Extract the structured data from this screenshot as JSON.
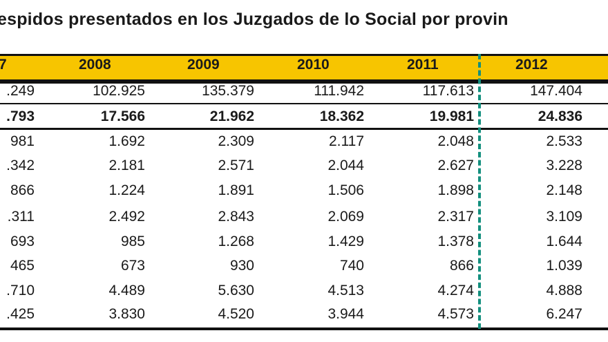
{
  "title": "espidos presentados en los Juzgados de lo Social por provin",
  "header": [
    "7",
    "2008",
    "2009",
    "2010",
    "2011",
    "2012"
  ],
  "rows": [
    {
      "bold": false,
      "values": [
        ".249",
        "102.925",
        "135.379",
        "111.942",
        "117.613",
        "147.404"
      ]
    },
    {
      "bold": true,
      "values": [
        ".793",
        "17.566",
        "21.962",
        "18.362",
        "19.981",
        "24.836"
      ]
    },
    {
      "bold": false,
      "values": [
        "981",
        "1.692",
        "2.309",
        "2.117",
        "2.048",
        "2.533"
      ]
    },
    {
      "bold": false,
      "values": [
        ".342",
        "2.181",
        "2.571",
        "2.044",
        "2.627",
        "3.228"
      ]
    },
    {
      "bold": false,
      "values": [
        "866",
        "1.224",
        "1.891",
        "1.506",
        "1.898",
        "2.148"
      ]
    },
    {
      "bold": false,
      "values": [
        ".311",
        "2.492",
        "2.843",
        "2.069",
        "2.317",
        "3.109"
      ]
    },
    {
      "bold": false,
      "values": [
        "693",
        "985",
        "1.268",
        "1.429",
        "1.378",
        "1.644"
      ]
    },
    {
      "bold": false,
      "values": [
        "465",
        "673",
        "930",
        "740",
        "866",
        "1.039"
      ]
    },
    {
      "bold": false,
      "values": [
        ".710",
        "4.489",
        "5.630",
        "4.513",
        "4.274",
        "4.888"
      ]
    },
    {
      "bold": false,
      "values": [
        ".425",
        "3.830",
        "4.520",
        "3.944",
        "4.573",
        "6.247"
      ]
    }
  ],
  "colors": {
    "header_bg": "#f7c500",
    "divider": "#138f7e"
  }
}
